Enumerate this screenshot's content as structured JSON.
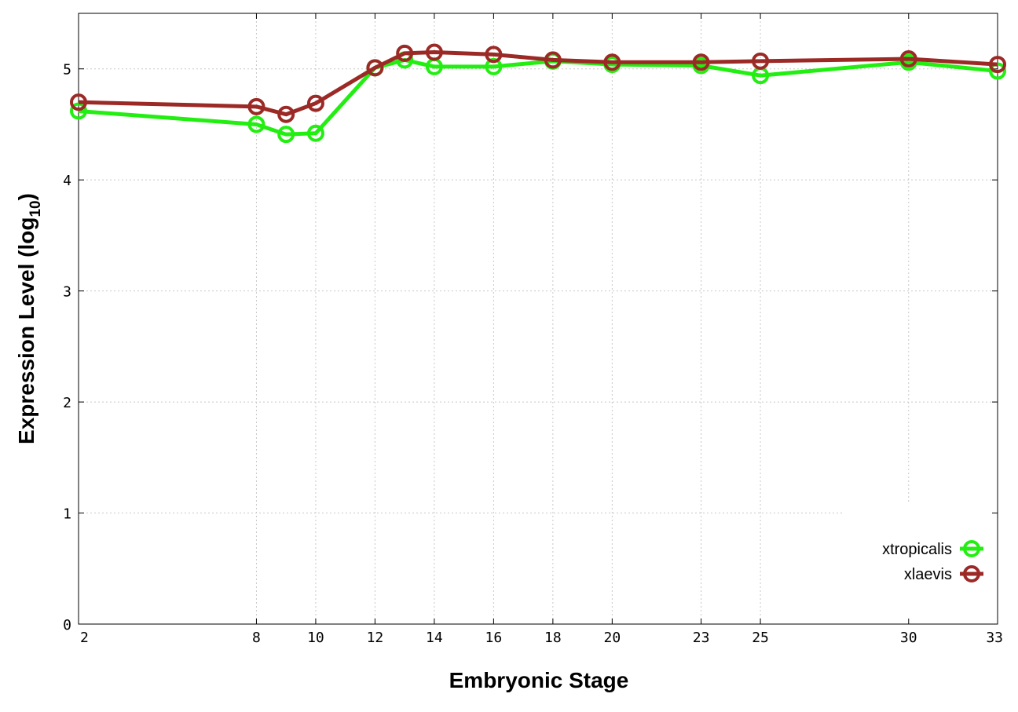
{
  "chart_data": {
    "type": "line",
    "xlabel": "Embryonic Stage",
    "ylabel_main": "Expression Level (log",
    "ylabel_sub": "10",
    "ylabel_end": ")",
    "xlim": [
      2,
      33
    ],
    "ylim": [
      0,
      5.5
    ],
    "x_ticks": [
      2,
      8,
      10,
      12,
      14,
      16,
      18,
      20,
      23,
      25,
      30,
      33
    ],
    "y_ticks": [
      0,
      1,
      2,
      3,
      4,
      5
    ],
    "grid": true,
    "legend_position": "bottom-right",
    "x": [
      2,
      8,
      9,
      10,
      12,
      13,
      14,
      16,
      18,
      20,
      23,
      25,
      30,
      33
    ],
    "series": [
      {
        "name": "xtropicalis",
        "color": "#22ee11",
        "values": [
          4.62,
          4.5,
          4.41,
          4.42,
          5.01,
          5.08,
          5.02,
          5.02,
          5.07,
          5.04,
          5.03,
          4.94,
          5.06,
          4.98
        ]
      },
      {
        "name": "xlaevis",
        "color": "#9b2a26",
        "values": [
          4.7,
          4.66,
          4.59,
          4.69,
          5.01,
          5.14,
          5.15,
          5.13,
          5.08,
          5.06,
          5.06,
          5.07,
          5.09,
          5.04
        ]
      }
    ]
  }
}
